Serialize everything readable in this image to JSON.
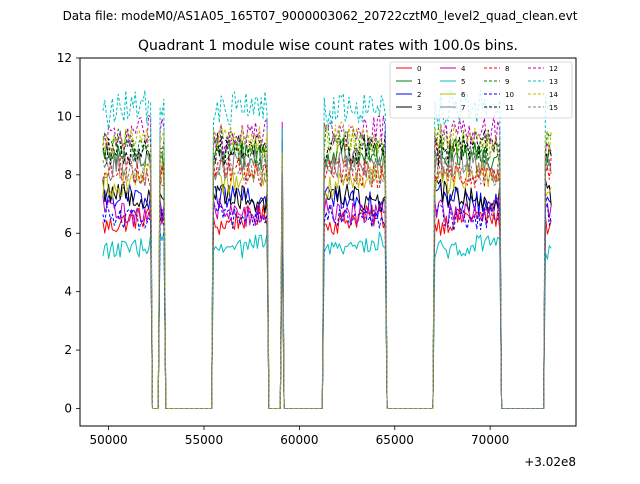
{
  "chart_data": {
    "type": "line",
    "suptitle": "Data file: modeM0/AS1A05_165T07_9000003062_20722cztM0_level2_quad_clean.evt",
    "title": "Quadrant 1 module wise count rates with 100.0s bins.",
    "xlabel": "",
    "ylabel": "",
    "x_offset_label": "+3.02e8",
    "xlim": [
      48500,
      74500
    ],
    "ylim": [
      -0.6,
      12
    ],
    "xticks": [
      50000,
      55000,
      60000,
      65000,
      70000
    ],
    "yticks": [
      0,
      2,
      4,
      6,
      8,
      10,
      12
    ],
    "legend_position": "top-right",
    "legend_columns": 4,
    "grid": false,
    "segments": [
      {
        "start": 49700,
        "end": 52200
      },
      {
        "start": 52700,
        "end": 52900
      },
      {
        "start": 55500,
        "end": 58300
      },
      {
        "start": 59050,
        "end": 59100
      },
      {
        "start": 61300,
        "end": 64500
      },
      {
        "start": 67100,
        "end": 70500
      },
      {
        "start": 72900,
        "end": 73200
      }
    ],
    "series": [
      {
        "name": "0",
        "color": "#ff0000",
        "style": "solid",
        "mean": 6.4
      },
      {
        "name": "1",
        "color": "#008000",
        "style": "solid",
        "mean": 8.6
      },
      {
        "name": "2",
        "color": "#0000ff",
        "style": "solid",
        "mean": 7.1
      },
      {
        "name": "3",
        "color": "#000000",
        "style": "solid",
        "mean": 7.3
      },
      {
        "name": "4",
        "color": "#bf00bf",
        "style": "solid",
        "mean": 6.8
      },
      {
        "name": "5",
        "color": "#00bfbf",
        "style": "solid",
        "mean": 5.6
      },
      {
        "name": "6",
        "color": "#bfbf00",
        "style": "solid",
        "mean": 7.8
      },
      {
        "name": "7",
        "color": "#808080",
        "style": "solid",
        "mean": 8.3
      },
      {
        "name": "8",
        "color": "#ff0000",
        "style": "dashed",
        "mean": 8.0
      },
      {
        "name": "9",
        "color": "#008000",
        "style": "dashed",
        "mean": 9.0
      },
      {
        "name": "10",
        "color": "#0000ff",
        "style": "dashed",
        "mean": 6.6
      },
      {
        "name": "11",
        "color": "#000000",
        "style": "dashed",
        "mean": 9.0
      },
      {
        "name": "12",
        "color": "#bf00bf",
        "style": "dashed",
        "mean": 9.4
      },
      {
        "name": "13",
        "color": "#00bfbf",
        "style": "dashed",
        "mean": 10.2
      },
      {
        "name": "14",
        "color": "#bfbf00",
        "style": "dashed",
        "mean": 9.1
      },
      {
        "name": "15",
        "color": "#808080",
        "style": "dashed",
        "mean": 8.1
      }
    ]
  }
}
